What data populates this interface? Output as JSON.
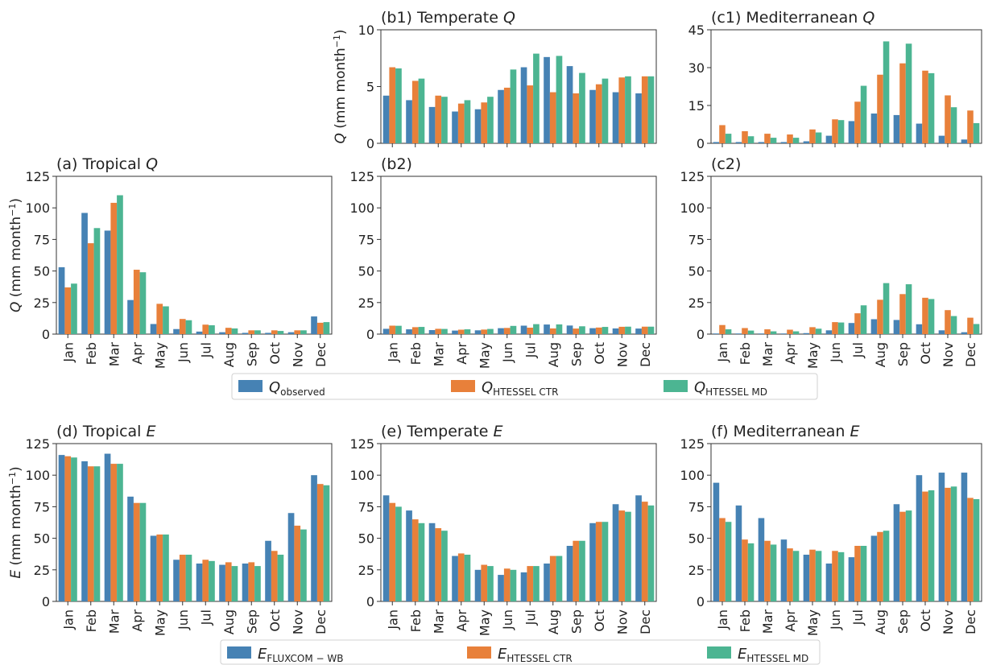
{
  "colors": {
    "observed": "#4682b4",
    "ctr": "#e8803a",
    "md": "#4cb592"
  },
  "legend_q": [
    {
      "symbol": "Q",
      "sub": "observed",
      "color": "#4682b4"
    },
    {
      "symbol": "Q",
      "sub": "HTESSEL CTR",
      "color": "#e8803a"
    },
    {
      "symbol": "Q",
      "sub": "HTESSEL MD",
      "color": "#4cb592"
    }
  ],
  "legend_e": [
    {
      "symbol": "E",
      "sub": "FLUXCOM − WB",
      "color": "#4682b4"
    },
    {
      "symbol": "E",
      "sub": "HTESSEL CTR",
      "color": "#e8803a"
    },
    {
      "symbol": "E",
      "sub": "HTESSEL MD",
      "color": "#4cb592"
    }
  ],
  "chart_data": [
    {
      "id": "b1",
      "type": "bar",
      "title_prefix": "(b1) Temperate ",
      "title_var": "Q",
      "ylabel_var": "Q",
      "ylabel_unit": " (mm month",
      "ylabel_exp": "−1",
      "ylabel_close": ")",
      "ylim": [
        0,
        10
      ],
      "yticks": [
        0,
        5,
        10
      ],
      "show_xlabels": false,
      "categories": [
        "Jan",
        "Feb",
        "Mar",
        "Apr",
        "May",
        "Jun",
        "Jul",
        "Aug",
        "Sep",
        "Oct",
        "Nov",
        "Dec"
      ],
      "series": [
        {
          "key": "observed",
          "values": [
            4.2,
            3.8,
            3.2,
            2.8,
            3.0,
            4.7,
            6.7,
            7.6,
            6.8,
            4.7,
            4.5,
            4.4
          ]
        },
        {
          "key": "ctr",
          "values": [
            6.7,
            5.5,
            4.2,
            3.5,
            3.6,
            4.9,
            5.1,
            4.5,
            4.4,
            5.2,
            5.8,
            5.9
          ]
        },
        {
          "key": "md",
          "values": [
            6.6,
            5.7,
            4.1,
            3.8,
            4.1,
            6.5,
            7.9,
            7.7,
            6.2,
            5.7,
            5.9,
            5.9
          ]
        }
      ]
    },
    {
      "id": "c1",
      "type": "bar",
      "title_prefix": "(c1) Mediterranean ",
      "title_var": "Q",
      "ylim": [
        0,
        45
      ],
      "yticks": [
        0,
        15,
        30,
        45
      ],
      "show_xlabels": false,
      "categories": [
        "Jan",
        "Feb",
        "Mar",
        "Apr",
        "May",
        "Jun",
        "Jul",
        "Aug",
        "Sep",
        "Oct",
        "Nov",
        "Dec"
      ],
      "series": [
        {
          "key": "observed",
          "values": [
            0.5,
            0.5,
            0.5,
            0.5,
            0.8,
            3.0,
            8.8,
            11.8,
            11.2,
            7.8,
            3.0,
            1.5
          ]
        },
        {
          "key": "ctr",
          "values": [
            7.2,
            4.8,
            3.8,
            3.5,
            5.5,
            9.5,
            16.5,
            27.2,
            31.7,
            28.8,
            19.0,
            13.0
          ]
        },
        {
          "key": "md",
          "values": [
            3.8,
            2.8,
            2.2,
            2.2,
            4.3,
            9.2,
            22.8,
            40.4,
            39.5,
            27.8,
            14.3,
            8.0
          ]
        }
      ]
    },
    {
      "id": "a",
      "type": "bar",
      "title_prefix": "(a) Tropical ",
      "title_var": "Q",
      "ylabel_var": "Q",
      "ylabel_unit": " (mm month",
      "ylabel_exp": "−1",
      "ylabel_close": ")",
      "ylim": [
        0,
        125
      ],
      "yticks": [
        0,
        25,
        50,
        75,
        100,
        125
      ],
      "show_xlabels": true,
      "categories": [
        "Jan",
        "Feb",
        "Mar",
        "Apr",
        "May",
        "Jun",
        "Jul",
        "Aug",
        "Sep",
        "Oct",
        "Nov",
        "Dec"
      ],
      "series": [
        {
          "key": "observed",
          "values": [
            53,
            96,
            82,
            27,
            8,
            4,
            2,
            1.5,
            1,
            1,
            1.5,
            14
          ]
        },
        {
          "key": "ctr",
          "values": [
            37,
            72,
            104,
            51,
            24,
            12,
            7.5,
            5,
            3,
            3,
            3,
            9
          ]
        },
        {
          "key": "md",
          "values": [
            40,
            84,
            110,
            49,
            22,
            11,
            7,
            4.5,
            3,
            2.5,
            3,
            9.5
          ]
        }
      ]
    },
    {
      "id": "b2",
      "type": "bar",
      "title_prefix": "(b2)",
      "title_var": "",
      "ylim": [
        0,
        125
      ],
      "yticks": [
        0,
        25,
        50,
        75,
        100,
        125
      ],
      "show_xlabels": true,
      "categories": [
        "Jan",
        "Feb",
        "Mar",
        "Apr",
        "May",
        "Jun",
        "Jul",
        "Aug",
        "Sep",
        "Oct",
        "Nov",
        "Dec"
      ],
      "series": [
        {
          "key": "observed",
          "values": [
            4.2,
            3.8,
            3.2,
            2.8,
            3.0,
            4.7,
            6.7,
            7.6,
            6.8,
            4.7,
            4.5,
            4.4
          ]
        },
        {
          "key": "ctr",
          "values": [
            6.7,
            5.5,
            4.2,
            3.5,
            3.6,
            4.9,
            5.1,
            4.5,
            4.4,
            5.2,
            5.8,
            5.9
          ]
        },
        {
          "key": "md",
          "values": [
            6.6,
            5.7,
            4.1,
            3.8,
            4.1,
            6.5,
            7.9,
            7.7,
            6.2,
            5.7,
            5.9,
            5.9
          ]
        }
      ]
    },
    {
      "id": "c2",
      "type": "bar",
      "title_prefix": "(c2)",
      "title_var": "",
      "ylim": [
        0,
        125
      ],
      "yticks": [
        0,
        25,
        50,
        75,
        100,
        125
      ],
      "show_xlabels": true,
      "categories": [
        "Jan",
        "Feb",
        "Mar",
        "Apr",
        "May",
        "Jun",
        "Jul",
        "Aug",
        "Sep",
        "Oct",
        "Nov",
        "Dec"
      ],
      "series": [
        {
          "key": "observed",
          "values": [
            0.5,
            0.5,
            0.5,
            0.5,
            0.8,
            3.0,
            8.8,
            11.8,
            11.2,
            7.8,
            3.0,
            1.5
          ]
        },
        {
          "key": "ctr",
          "values": [
            7.2,
            4.8,
            3.8,
            3.5,
            5.5,
            9.5,
            16.5,
            27.2,
            31.7,
            28.8,
            19.0,
            13.0
          ]
        },
        {
          "key": "md",
          "values": [
            3.8,
            2.8,
            2.2,
            2.2,
            4.3,
            9.2,
            22.8,
            40.4,
            39.5,
            27.8,
            14.3,
            8.0
          ]
        }
      ]
    },
    {
      "id": "d",
      "type": "bar",
      "title_prefix": "(d) Tropical ",
      "title_var": "E",
      "ylabel_var": "E",
      "ylabel_unit": " (mm month",
      "ylabel_exp": "−1",
      "ylabel_close": ")",
      "ylim": [
        0,
        125
      ],
      "yticks": [
        0,
        25,
        50,
        75,
        100,
        125
      ],
      "show_xlabels": true,
      "categories": [
        "Jan",
        "Feb",
        "Mar",
        "Apr",
        "May",
        "Jun",
        "Jul",
        "Aug",
        "Sep",
        "Oct",
        "Nov",
        "Dec"
      ],
      "series": [
        {
          "key": "observed",
          "values": [
            116,
            111,
            117,
            83,
            52,
            33,
            30,
            29,
            30,
            48,
            70,
            100
          ]
        },
        {
          "key": "ctr",
          "values": [
            115,
            107,
            109,
            78,
            53,
            37,
            33,
            31,
            31,
            40,
            60,
            93
          ]
        },
        {
          "key": "md",
          "values": [
            114,
            107,
            109,
            78,
            53,
            37,
            32,
            28,
            28,
            37,
            57,
            92
          ]
        }
      ]
    },
    {
      "id": "e",
      "type": "bar",
      "title_prefix": "(e) Temperate ",
      "title_var": "E",
      "ylim": [
        0,
        125
      ],
      "yticks": [
        0,
        25,
        50,
        75,
        100,
        125
      ],
      "show_xlabels": true,
      "categories": [
        "Jan",
        "Feb",
        "Mar",
        "Apr",
        "May",
        "Jun",
        "Jul",
        "Aug",
        "Sep",
        "Oct",
        "Nov",
        "Dec"
      ],
      "series": [
        {
          "key": "observed",
          "values": [
            84,
            72,
            62,
            36,
            25,
            21,
            23,
            30,
            44,
            62,
            77,
            84
          ]
        },
        {
          "key": "ctr",
          "values": [
            78,
            65,
            58,
            38,
            29,
            26,
            28,
            36,
            48,
            63,
            72,
            79
          ]
        },
        {
          "key": "md",
          "values": [
            75,
            62,
            56,
            37,
            28,
            25,
            28,
            36,
            48,
            63,
            71,
            76
          ]
        }
      ]
    },
    {
      "id": "f",
      "type": "bar",
      "title_prefix": "(f) Mediterranean ",
      "title_var": "E",
      "ylim": [
        0,
        125
      ],
      "yticks": [
        0,
        25,
        50,
        75,
        100,
        125
      ],
      "show_xlabels": true,
      "categories": [
        "Jan",
        "Feb",
        "Mar",
        "Apr",
        "May",
        "Jun",
        "Jul",
        "Aug",
        "Sep",
        "Oct",
        "Nov",
        "Dec"
      ],
      "series": [
        {
          "key": "observed",
          "values": [
            94,
            76,
            66,
            49,
            37,
            30,
            35,
            52,
            77,
            100,
            102,
            102
          ]
        },
        {
          "key": "ctr",
          "values": [
            66,
            49,
            48,
            42,
            41,
            40,
            44,
            55,
            71,
            87,
            90,
            82
          ]
        },
        {
          "key": "md",
          "values": [
            63,
            46,
            45,
            40,
            40,
            39,
            44,
            56,
            72,
            88,
            91,
            81
          ]
        }
      ]
    }
  ]
}
